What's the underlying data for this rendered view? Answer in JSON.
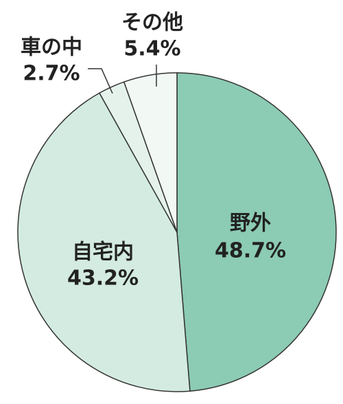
{
  "chart_data": {
    "type": "pie",
    "categories": [
      "野外",
      "自宅内",
      "車の中",
      "その他"
    ],
    "values": [
      48.7,
      43.2,
      2.7,
      5.4
    ],
    "value_labels": [
      "48.7%",
      "43.2%",
      "2.7%",
      "5.4%"
    ],
    "colors": [
      "#8ccbb4",
      "#d3ebe0",
      "#e4f2eb",
      "#f2f9f5"
    ]
  }
}
